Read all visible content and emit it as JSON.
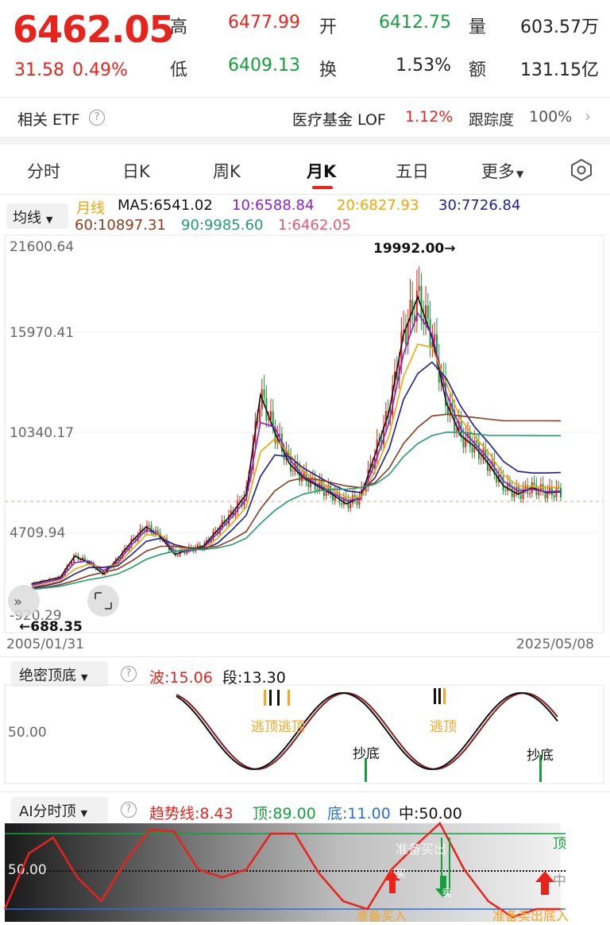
{
  "quote": {
    "price": "6462.05",
    "change": "31.58",
    "change_pct": "0.49%",
    "high_label": "高",
    "high": "6477.99",
    "low_label": "低",
    "low": "6409.13",
    "open_label": "开",
    "open": "6412.75",
    "turnover_label": "换",
    "turnover": "1.53%",
    "volume_label": "量",
    "volume": "603.57万",
    "amount_label": "额",
    "amount": "131.15亿"
  },
  "etf": {
    "label": "相关 ETF",
    "fund_name": "医疗基金 LOF",
    "fund_change": "1.12%",
    "tracking_label": "跟踪度",
    "tracking_value": "100%"
  },
  "tabs": [
    "分时",
    "日K",
    "周K",
    "月K",
    "五日",
    "更多"
  ],
  "active_tab": "月K",
  "ma": {
    "selector_label": "均线",
    "series_label": "月线",
    "ma5": "MA5:6541.02",
    "ma10": "10:6588.84",
    "ma20": "20:6827.93",
    "ma30": "30:7726.84",
    "ma60": "60:10897.31",
    "ma90": "90:9985.60",
    "ma1": "1:6462.05"
  },
  "main_chart": {
    "y_ticks": [
      "21600.64",
      "15970.41",
      "10340.17",
      "4709.94",
      "-920.29"
    ],
    "high_marker": "19992.00→",
    "low_marker": "←688.35",
    "start_date": "2005/01/31",
    "end_date": "2025/05/08"
  },
  "ind1": {
    "selector_label": "绝密顶底",
    "wave": "波:15.06",
    "segment": "段:13.30",
    "level": "50.00",
    "labels": [
      "逃顶逃顶",
      "抄底",
      "逃顶",
      "抄底"
    ]
  },
  "ind2": {
    "selector_label": "AI分时顶",
    "trend": "趋势线:8.43",
    "top": "顶:89.00",
    "bottom": "底:11.00",
    "mid": "中:50.00",
    "level": "50.00",
    "top_tag": "顶",
    "mid_tag": "中",
    "labels": [
      "准备买出",
      "准备买入",
      "准备卖出底入",
      "买",
      "卖"
    ]
  },
  "colors": {
    "up": "#e8231c",
    "down": "#13a03a",
    "ma5": "#111111",
    "ma10": "#8b1ed8",
    "ma20": "#f0a500",
    "ma30": "#1c1c9a",
    "ma60": "#8b3a1a",
    "ma90": "#1f9e6e",
    "ma1": "#e8556e"
  },
  "chart_data": [
    {
      "type": "line",
      "title": "",
      "xlabel": "",
      "ylabel": "",
      "x_range": [
        "2005/01/31",
        "2025/05/08"
      ],
      "ylim": [
        -920.29,
        21600.64
      ],
      "series": [
        {
          "name": "MA5",
          "values": [
            900,
            1100,
            1300,
            2600,
            2200,
            1500,
            2400,
            3500,
            4400,
            3800,
            2700,
            3000,
            3200,
            4200,
            5200,
            6400,
            12500,
            10200,
            8300,
            7400,
            6900,
            6400,
            5800,
            6200,
            8800,
            11500,
            16200,
            18500,
            16000,
            12000,
            10000,
            9300,
            8200,
            6900,
            6400,
            6800,
            6500,
            6541
          ]
        },
        {
          "name": "10",
          "values": [
            800,
            1000,
            1200,
            2200,
            2300,
            1700,
            2200,
            3300,
            4200,
            3900,
            2900,
            2900,
            3100,
            4000,
            5000,
            6100,
            10800,
            10500,
            8600,
            7500,
            7000,
            6500,
            6000,
            6100,
            8300,
            10800,
            15000,
            17500,
            16200,
            12600,
            10400,
            9500,
            8500,
            7200,
            6600,
            6700,
            6550,
            6588
          ]
        },
        {
          "name": "20",
          "values": [
            700,
            900,
            1100,
            1800,
            2100,
            1900,
            2100,
            3000,
            3900,
            3900,
            3200,
            3000,
            3000,
            3700,
            4600,
            5600,
            9000,
            9800,
            8900,
            7800,
            7200,
            6700,
            6200,
            6200,
            7800,
            10000,
            13600,
            15600,
            15400,
            13200,
            11000,
            9900,
            8900,
            7600,
            6900,
            6850,
            6800,
            6828
          ]
        },
        {
          "name": "30",
          "values": [
            650,
            800,
            1000,
            1500,
            1900,
            1900,
            2000,
            2700,
            3500,
            3700,
            3300,
            3100,
            3000,
            3400,
            4200,
            5100,
            7500,
            8800,
            8700,
            8000,
            7500,
            7000,
            6600,
            6500,
            7400,
            9200,
            12200,
            13800,
            14500,
            13500,
            11800,
            10500,
            9500,
            8400,
            7800,
            7700,
            7700,
            7727
          ]
        },
        {
          "name": "60",
          "values": [
            600,
            700,
            850,
            1100,
            1400,
            1600,
            1800,
            2300,
            2900,
            3200,
            3200,
            3100,
            3100,
            3200,
            3600,
            4100,
            5500,
            6600,
            7200,
            7400,
            7300,
            7100,
            6900,
            6800,
            7100,
            8000,
            9500,
            10500,
            11200,
            11300,
            11200,
            11100,
            11000,
            10900,
            10900,
            10900,
            10900,
            10897
          ]
        },
        {
          "name": "90",
          "values": [
            550,
            650,
            750,
            950,
            1150,
            1300,
            1500,
            1900,
            2400,
            2700,
            2900,
            3000,
            3000,
            3100,
            3300,
            3700,
            4600,
            5400,
            6000,
            6400,
            6600,
            6700,
            6700,
            6800,
            7000,
            7600,
            8700,
            9500,
            10000,
            10200,
            10200,
            10100,
            10000,
            10000,
            10000,
            9990,
            9985,
            9986
          ]
        }
      ],
      "high": 19992.0,
      "low": 688.35,
      "last": 6462.05,
      "grid": false
    }
  ]
}
